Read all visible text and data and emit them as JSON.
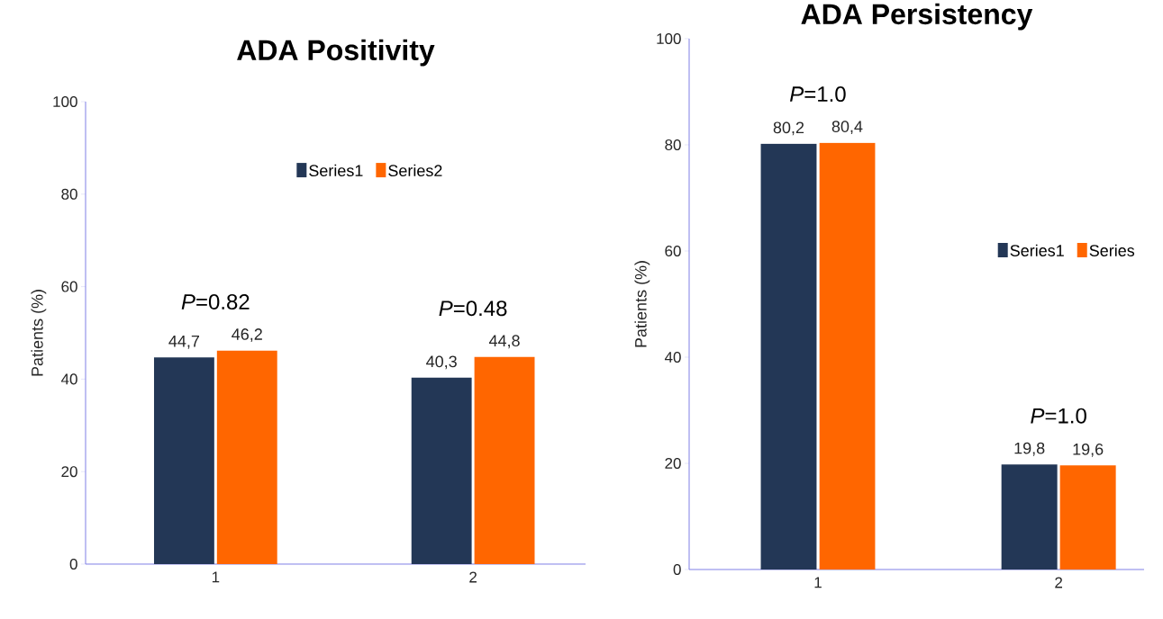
{
  "chart_data": [
    {
      "type": "bar",
      "title": "ADA Positivity",
      "ylabel": "Patients (%)",
      "categories": [
        "1",
        "2"
      ],
      "series": [
        {
          "name": "Series1",
          "color": "#233756",
          "values": [
            44.7,
            40.3
          ],
          "value_labels": [
            "44,7",
            "40,3"
          ]
        },
        {
          "name": "Series2",
          "color": "#ff6600",
          "values": [
            46.2,
            44.8
          ],
          "value_labels": [
            "46,2",
            "44,8"
          ]
        }
      ],
      "annotations": [
        "*P*=0.82",
        "*P*=0.48"
      ],
      "ylim": [
        0,
        100
      ],
      "yticks": [
        0,
        20,
        40,
        60,
        80,
        100
      ],
      "grid": false,
      "legend": "top"
    },
    {
      "type": "bar",
      "title": "ADA Persistency",
      "ylabel": "Patients (%)",
      "categories": [
        "1",
        "2"
      ],
      "series": [
        {
          "name": "Series1",
          "color": "#233756",
          "values": [
            80.2,
            19.8
          ],
          "value_labels": [
            "80,2",
            "19,8"
          ]
        },
        {
          "name": "Series",
          "color": "#ff6600",
          "values": [
            80.4,
            19.6
          ],
          "value_labels": [
            "80,4",
            "19,6"
          ]
        }
      ],
      "annotations": [
        "*P*=1.0",
        "*P*=1.0"
      ],
      "ylim": [
        0,
        100
      ],
      "yticks": [
        0,
        20,
        40,
        60,
        80,
        100
      ],
      "grid": false,
      "legend": "right"
    }
  ]
}
